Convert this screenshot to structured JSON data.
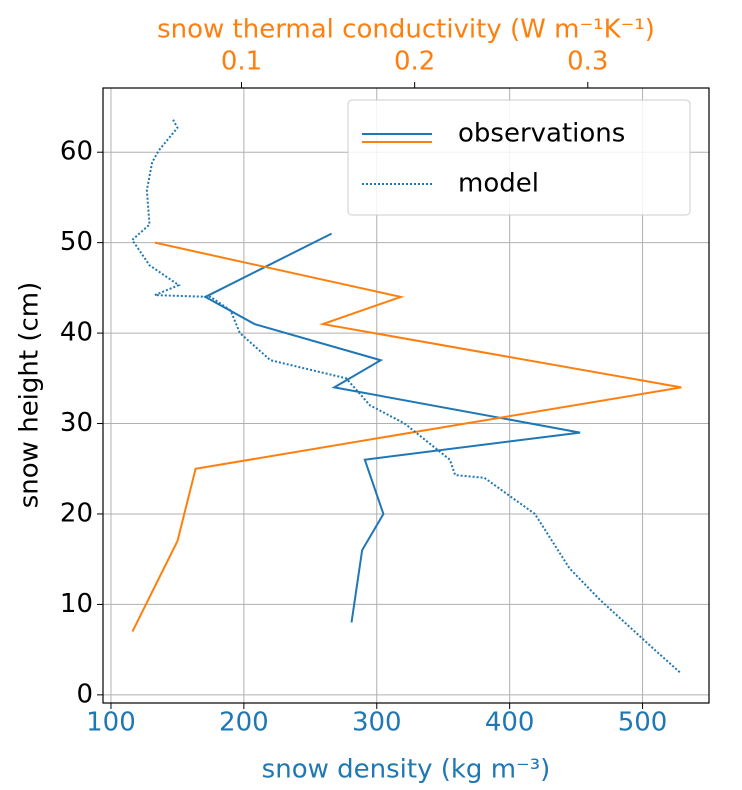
{
  "chart_data": {
    "type": "line",
    "xlabel": "snow density (kg m⁻³)",
    "xlabel_color": "#1f77b4",
    "x2label": "snow thermal conductivity (W m⁻¹K⁻¹)",
    "x2label_color": "#ff7f0e",
    "ylabel": "snow height (cm)",
    "xlim": [
      94,
      550
    ],
    "xticks": [
      100,
      200,
      300,
      400,
      500
    ],
    "x2lim": [
      0.02,
      0.37
    ],
    "x2ticks": [
      0.1,
      0.2,
      0.3
    ],
    "ylim": [
      -0.9,
      67.1
    ],
    "yticks": [
      0,
      10,
      20,
      30,
      40,
      50,
      60
    ],
    "grid": true,
    "legend": "upper right",
    "series": [
      {
        "name": "observations",
        "color": "#1f77b4",
        "style": "solid",
        "axis": "x",
        "values": [
          266,
          171,
          208,
          303,
          268,
          453,
          291,
          305,
          289,
          285,
          281
        ],
        "y": [
          51,
          44,
          41,
          37,
          34,
          29,
          26,
          20,
          16,
          12,
          8
        ]
      },
      {
        "name": "observations",
        "color": "#ff7f0e",
        "style": "solid",
        "axis": "x2",
        "values": [
          0.05,
          0.192,
          0.147,
          0.354,
          0.0735,
          0.063,
          0.037
        ],
        "y": [
          50,
          44,
          41,
          34,
          25,
          17,
          7
        ]
      },
      {
        "name": "model",
        "color": "#1f77b4",
        "style": "dotted",
        "axis": "x",
        "values": [
          528,
          509,
          468,
          445,
          419,
          381,
          359,
          355,
          321,
          295,
          277,
          220,
          197,
          190,
          175,
          133,
          151,
          129,
          116,
          129,
          127,
          131,
          136,
          150,
          146
        ],
        "y": [
          2.5,
          5,
          10.5,
          14,
          20,
          24,
          24.3,
          26,
          30,
          32,
          35,
          37,
          40,
          42.5,
          44,
          44.2,
          45.3,
          47.5,
          50.3,
          52,
          55.8,
          58.9,
          60.2,
          62.7,
          63.8
        ]
      }
    ]
  }
}
